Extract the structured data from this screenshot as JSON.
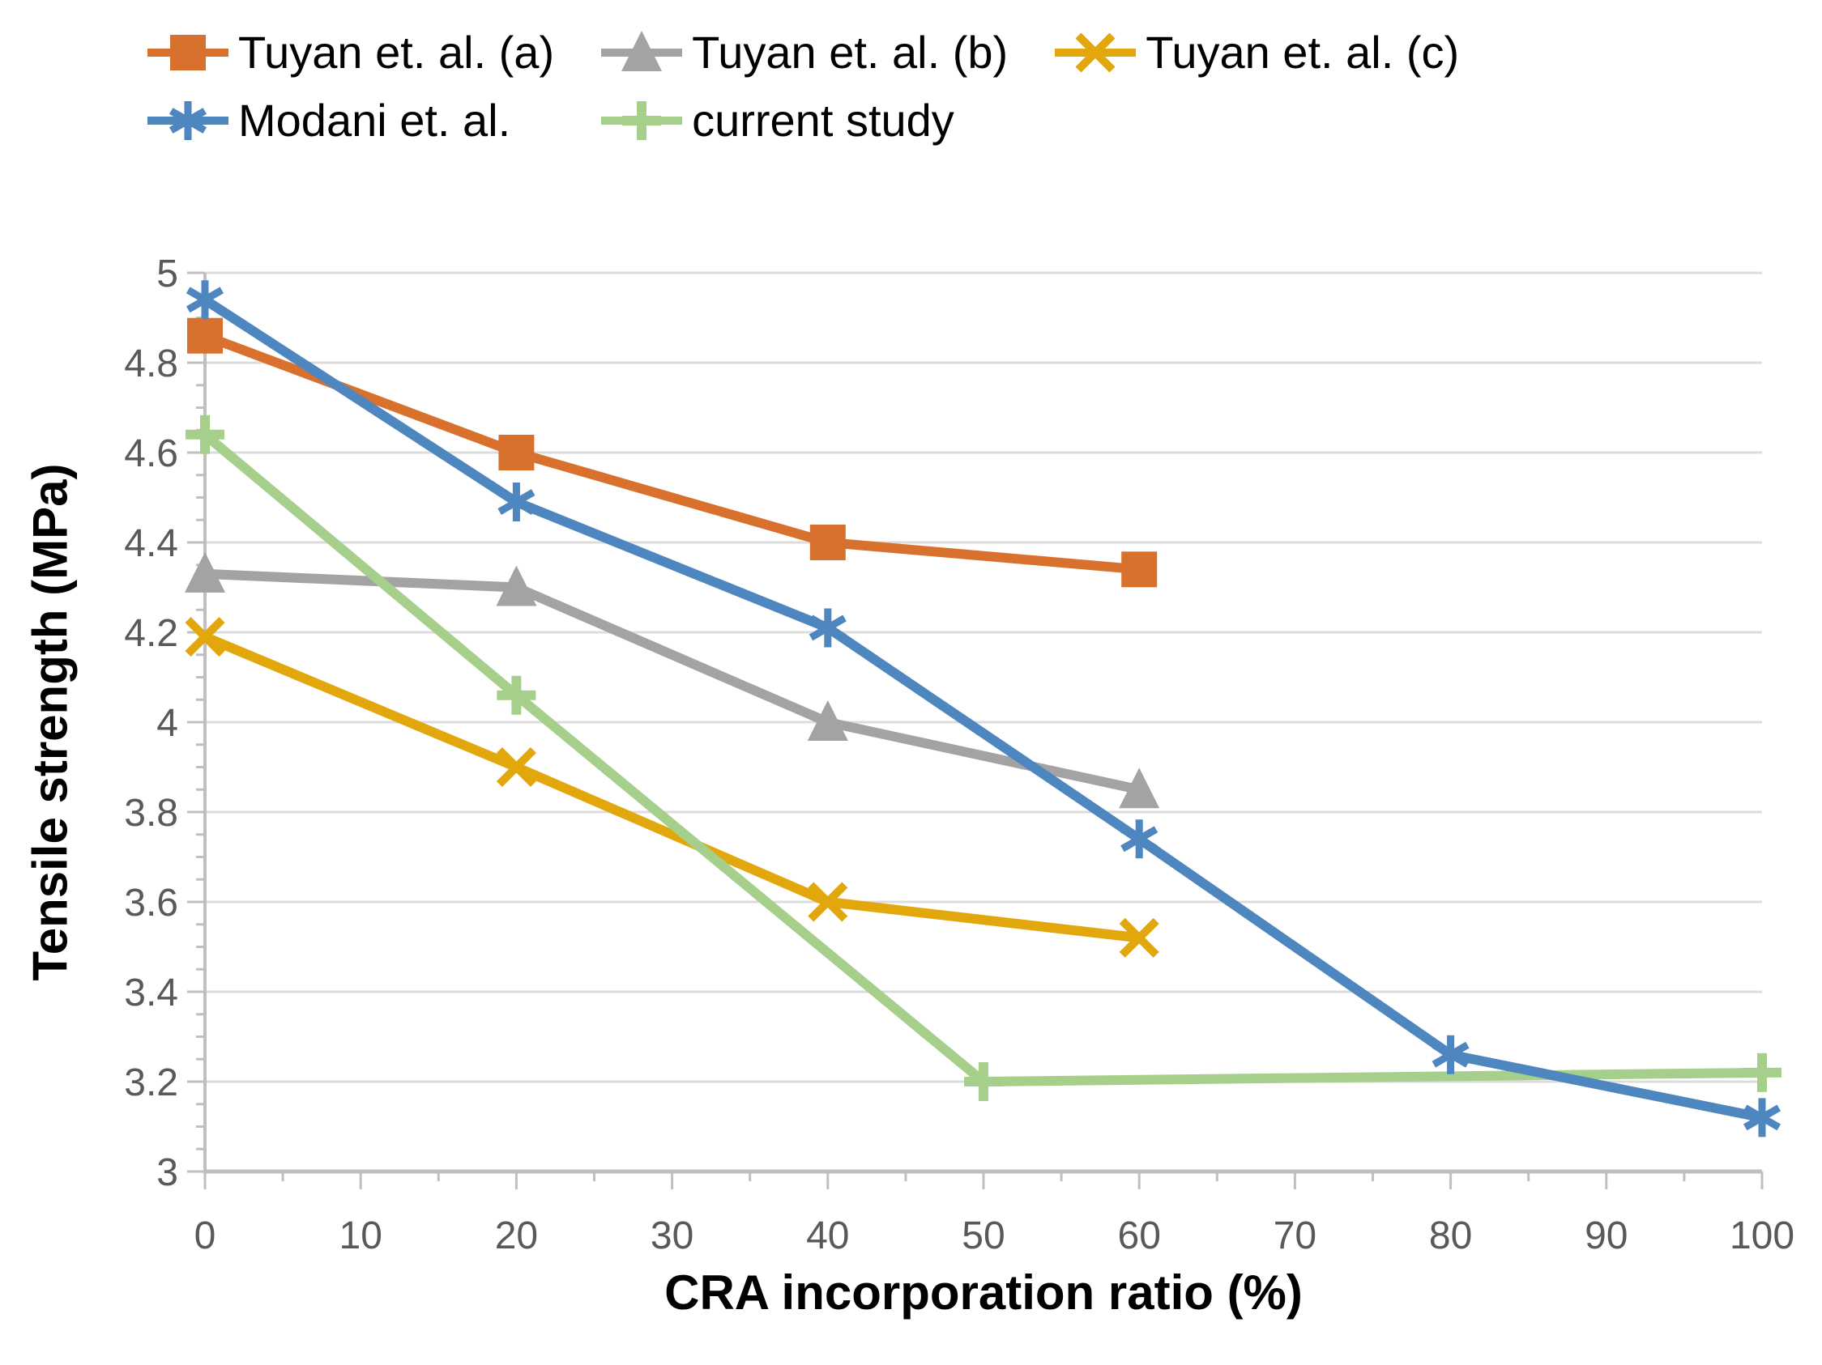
{
  "chart_data": {
    "type": "line",
    "title": "",
    "xlabel": "CRA incorporation ratio (%)",
    "ylabel": "Tensile strength (MPa)",
    "xlim": [
      0,
      100
    ],
    "ylim": [
      3,
      5
    ],
    "x_tick_labels": [
      "0",
      "10",
      "20",
      "30",
      "40",
      "50",
      "60",
      "70",
      "80",
      "90",
      "100"
    ],
    "y_tick_labels": [
      "3",
      "3.2",
      "3.4",
      "3.6",
      "3.8",
      "4",
      "4.2",
      "4.4",
      "4.6",
      "4.8",
      "5"
    ],
    "x_major_step": 10,
    "x_minor_step": 5,
    "y_major_step": 0.2,
    "y_minor_step": 0.05,
    "grid": "horizontal-major",
    "legend_position": "top-left",
    "series": [
      {
        "name": "Tuyan et. al. (a)",
        "marker": "square",
        "color": "#D9712E",
        "x": [
          0,
          20,
          40,
          60
        ],
        "y": [
          4.86,
          4.6,
          4.4,
          4.34
        ]
      },
      {
        "name": "Tuyan et. al. (b)",
        "marker": "triangle",
        "color": "#A3A3A3",
        "x": [
          0,
          20,
          40,
          60
        ],
        "y": [
          4.33,
          4.3,
          4.0,
          3.85
        ]
      },
      {
        "name": "Tuyan et. al. (c)",
        "marker": "x",
        "color": "#E3A70E",
        "x": [
          0,
          20,
          40,
          60
        ],
        "y": [
          4.19,
          3.9,
          3.6,
          3.52
        ]
      },
      {
        "name": "Modani et. al.",
        "marker": "asterisk",
        "color": "#4E86C0",
        "x": [
          0,
          20,
          40,
          60,
          80,
          100
        ],
        "y": [
          4.94,
          4.49,
          4.21,
          3.74,
          3.26,
          3.12
        ]
      },
      {
        "name": "current study",
        "marker": "plus",
        "color": "#A7CF8C",
        "x": [
          0,
          20,
          50,
          100
        ],
        "y": [
          4.64,
          4.06,
          3.2,
          3.22
        ]
      }
    ],
    "colors": {
      "background": "#FFFFFF",
      "grid": "#DCDCDC",
      "axis": "#BFBFBF",
      "tick_label": "#595959",
      "title_text": "#000000"
    }
  }
}
